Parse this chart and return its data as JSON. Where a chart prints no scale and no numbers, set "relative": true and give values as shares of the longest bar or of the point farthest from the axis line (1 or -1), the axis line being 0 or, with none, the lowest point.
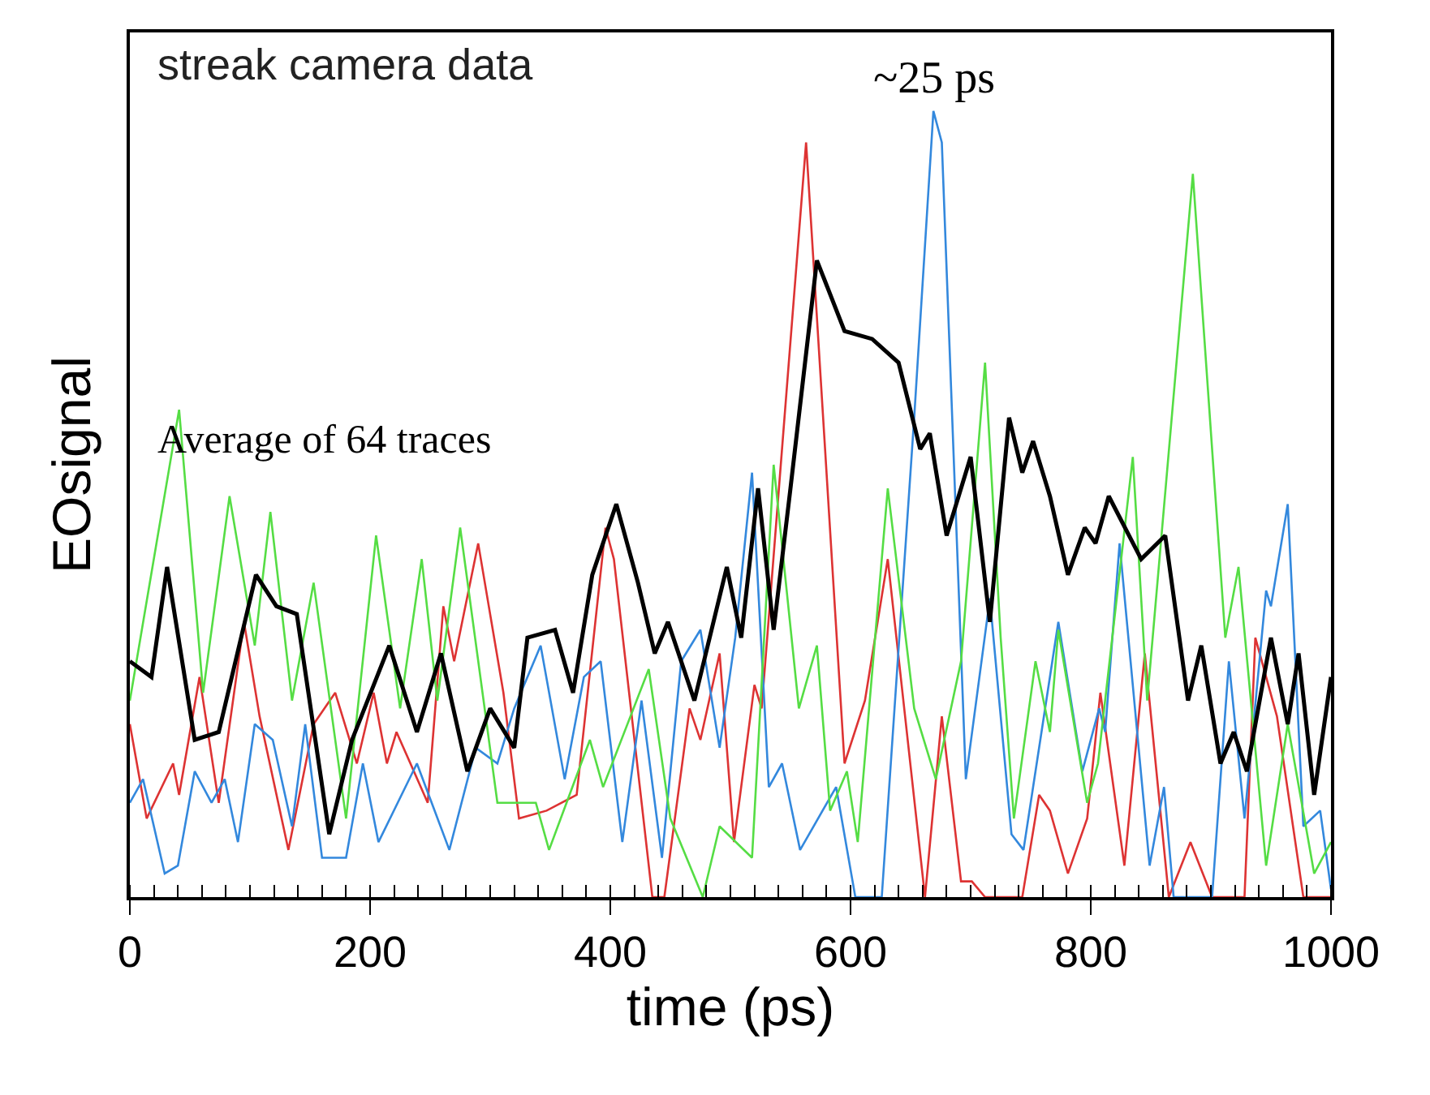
{
  "chart_data": {
    "type": "line",
    "relative": true,
    "xlabel": "time (ps)",
    "ylabel": "EOsignal",
    "xlim": [
      0,
      1000
    ],
    "xticks": [
      0,
      200,
      400,
      600,
      800,
      1000
    ],
    "grid": false,
    "marker": "none",
    "line_style": "solid",
    "annotations": [
      "streak camera data",
      {
        "text": "~25 ps",
        "x": 669,
        "y": 1
      },
      "Average of 64 traces"
    ],
    "series": [
      {
        "color": "#dd3333",
        "x": [
          0,
          14,
          36,
          41,
          58,
          74,
          95,
          108,
          132,
          153,
          171,
          189,
          203,
          214,
          222,
          248,
          261,
          270,
          290,
          311,
          324,
          347,
          372,
          396,
          403,
          435,
          445,
          466,
          475,
          491,
          503,
          520,
          526,
          563,
          595,
          612,
          631,
          662,
          676,
          692,
          701,
          712,
          743,
          757,
          766,
          781,
          797,
          808,
          828,
          845,
          865,
          883,
          901,
          928,
          937,
          955,
          977,
          1000
        ],
        "values": [
          0.22,
          0.1,
          0.17,
          0.13,
          0.28,
          0.12,
          0.35,
          0.23,
          0.06,
          0.22,
          0.26,
          0.17,
          0.26,
          0.17,
          0.21,
          0.12,
          0.37,
          0.3,
          0.45,
          0.26,
          0.1,
          0.11,
          0.13,
          0.47,
          0.43,
          0,
          0,
          0.24,
          0.2,
          0.31,
          0.07,
          0.27,
          0.24,
          0.96,
          0.17,
          0.25,
          0.43,
          0,
          0.23,
          0.02,
          0.02,
          0,
          0,
          0.13,
          0.11,
          0.03,
          0.1,
          0.26,
          0.04,
          0.31,
          0,
          0.07,
          0,
          0,
          0.33,
          0.23,
          0,
          0
        ]
      },
      {
        "color": "#3388dd",
        "x": [
          0,
          11,
          29,
          40,
          54,
          68,
          79,
          90,
          104,
          119,
          135,
          146,
          160,
          180,
          194,
          207,
          239,
          266,
          288,
          306,
          320,
          342,
          362,
          378,
          392,
          410,
          426,
          443,
          459,
          475,
          491,
          504,
          518,
          532,
          543,
          558,
          588,
          604,
          626,
          653,
          669,
          676,
          696,
          716,
          734,
          744,
          773,
          793,
          807,
          812,
          824,
          849,
          861,
          869,
          901,
          915,
          928,
          946,
          950,
          964,
          977,
          991,
          1000
        ],
        "values": [
          0.12,
          0.15,
          0.03,
          0.04,
          0.16,
          0.12,
          0.15,
          0.07,
          0.22,
          0.2,
          0.09,
          0.22,
          0.05,
          0.05,
          0.17,
          0.07,
          0.17,
          0.06,
          0.19,
          0.17,
          0.24,
          0.32,
          0.15,
          0.28,
          0.3,
          0.07,
          0.25,
          0.05,
          0.3,
          0.34,
          0.19,
          0.33,
          0.54,
          0.14,
          0.17,
          0.06,
          0.14,
          0,
          0,
          0.61,
          1,
          0.96,
          0.15,
          0.38,
          0.08,
          0.06,
          0.35,
          0.16,
          0.24,
          0.21,
          0.45,
          0.04,
          0.14,
          0,
          0,
          0.3,
          0.1,
          0.39,
          0.37,
          0.5,
          0.09,
          0.11,
          0.01
        ]
      },
      {
        "color": "#55dd44",
        "x": [
          0,
          41,
          61,
          83,
          104,
          117,
          135,
          153,
          180,
          205,
          225,
          243,
          256,
          275,
          306,
          338,
          349,
          383,
          394,
          432,
          450,
          477,
          491,
          518,
          536,
          557,
          572,
          583,
          597,
          606,
          631,
          653,
          671,
          692,
          712,
          725,
          736,
          754,
          766,
          773,
          797,
          806,
          835,
          847,
          885,
          912,
          923,
          946,
          964,
          986,
          1000
        ],
        "values": [
          0.25,
          0.62,
          0.26,
          0.51,
          0.32,
          0.49,
          0.25,
          0.4,
          0.1,
          0.46,
          0.24,
          0.43,
          0.25,
          0.47,
          0.12,
          0.12,
          0.06,
          0.2,
          0.14,
          0.29,
          0.1,
          0,
          0.09,
          0.05,
          0.55,
          0.24,
          0.32,
          0.11,
          0.16,
          0.07,
          0.52,
          0.24,
          0.15,
          0.3,
          0.68,
          0.33,
          0.1,
          0.3,
          0.21,
          0.34,
          0.12,
          0.17,
          0.56,
          0.25,
          0.92,
          0.33,
          0.42,
          0.04,
          0.22,
          0.03,
          0.07
        ]
      },
      {
        "color": "#000000",
        "x": [
          0,
          18,
          31,
          54,
          74,
          105,
          122,
          139,
          166,
          185,
          216,
          239,
          259,
          281,
          300,
          320,
          331,
          354,
          369,
          385,
          405,
          423,
          437,
          448,
          470,
          497,
          509,
          523,
          536,
          550,
          572,
          595,
          618,
          640,
          658,
          666,
          680,
          700,
          716,
          732,
          743,
          752,
          766,
          781,
          795,
          804,
          815,
          842,
          862,
          881,
          892,
          908,
          919,
          930,
          950,
          964,
          973,
          986,
          1000
        ],
        "values": [
          0.3,
          0.28,
          0.42,
          0.2,
          0.21,
          0.41,
          0.37,
          0.36,
          0.08,
          0.2,
          0.32,
          0.21,
          0.31,
          0.16,
          0.24,
          0.19,
          0.33,
          0.34,
          0.26,
          0.41,
          0.5,
          0.4,
          0.31,
          0.35,
          0.25,
          0.42,
          0.33,
          0.52,
          0.34,
          0.52,
          0.81,
          0.72,
          0.71,
          0.68,
          0.57,
          0.59,
          0.46,
          0.56,
          0.35,
          0.61,
          0.54,
          0.58,
          0.51,
          0.41,
          0.47,
          0.45,
          0.51,
          0.43,
          0.46,
          0.25,
          0.32,
          0.17,
          0.21,
          0.16,
          0.33,
          0.22,
          0.31,
          0.13,
          0.28
        ]
      }
    ]
  }
}
